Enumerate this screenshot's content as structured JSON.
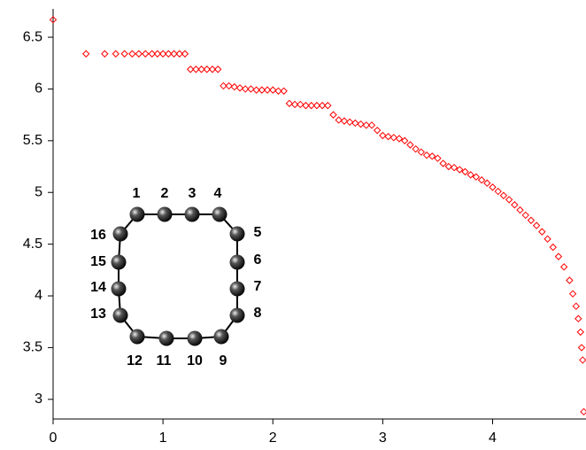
{
  "chart_data": {
    "type": "scatter",
    "color": "#ff0000",
    "x": [
      0,
      0.3,
      0.47,
      0.57,
      0.65,
      0.72,
      0.78,
      0.84,
      0.9,
      0.95,
      1.0,
      1.05,
      1.1,
      1.15,
      1.2,
      1.25,
      1.3,
      1.35,
      1.4,
      1.45,
      1.5,
      1.55,
      1.6,
      1.65,
      1.7,
      1.75,
      1.8,
      1.85,
      1.9,
      1.95,
      2.0,
      2.05,
      2.1,
      2.15,
      2.2,
      2.25,
      2.3,
      2.35,
      2.4,
      2.45,
      2.5,
      2.55,
      2.6,
      2.65,
      2.7,
      2.75,
      2.8,
      2.85,
      2.9,
      2.95,
      3.0,
      3.05,
      3.1,
      3.15,
      3.2,
      3.25,
      3.3,
      3.35,
      3.4,
      3.45,
      3.5,
      3.55,
      3.6,
      3.65,
      3.7,
      3.75,
      3.8,
      3.85,
      3.9,
      3.95,
      4.0,
      4.05,
      4.1,
      4.15,
      4.2,
      4.25,
      4.3,
      4.35,
      4.4,
      4.45,
      4.5,
      4.55,
      4.6,
      4.65,
      4.7,
      4.73,
      4.76,
      4.78,
      4.8,
      4.81,
      4.82,
      4.83
    ],
    "values": [
      6.67,
      6.34,
      6.34,
      6.34,
      6.34,
      6.34,
      6.34,
      6.34,
      6.34,
      6.34,
      6.34,
      6.34,
      6.34,
      6.34,
      6.34,
      6.19,
      6.19,
      6.19,
      6.19,
      6.19,
      6.19,
      6.03,
      6.03,
      6.02,
      6.01,
      6.0,
      6.0,
      5.99,
      5.99,
      5.99,
      5.99,
      5.98,
      5.98,
      5.86,
      5.85,
      5.85,
      5.84,
      5.84,
      5.84,
      5.84,
      5.84,
      5.75,
      5.7,
      5.69,
      5.68,
      5.67,
      5.66,
      5.65,
      5.65,
      5.6,
      5.55,
      5.54,
      5.53,
      5.52,
      5.5,
      5.46,
      5.42,
      5.39,
      5.36,
      5.35,
      5.33,
      5.28,
      5.25,
      5.24,
      5.22,
      5.2,
      5.17,
      5.15,
      5.12,
      5.09,
      5.05,
      5.01,
      4.97,
      4.93,
      4.88,
      4.83,
      4.78,
      4.73,
      4.68,
      4.62,
      4.55,
      4.47,
      4.38,
      4.28,
      4.15,
      4.02,
      3.9,
      3.78,
      3.65,
      3.5,
      3.38,
      2.88
    ],
    "xlim": [
      0,
      4.85
    ],
    "ylim": [
      2.81,
      6.86
    ],
    "xticks": [
      0,
      1,
      2,
      3,
      4
    ],
    "yticks": [
      3,
      3.5,
      4,
      4.5,
      5,
      5.5,
      6,
      6.5
    ]
  },
  "inset": {
    "nodes": [
      "1",
      "2",
      "3",
      "4",
      "5",
      "6",
      "7",
      "8",
      "9",
      "10",
      "11",
      "12",
      "13",
      "14",
      "15",
      "16"
    ]
  }
}
